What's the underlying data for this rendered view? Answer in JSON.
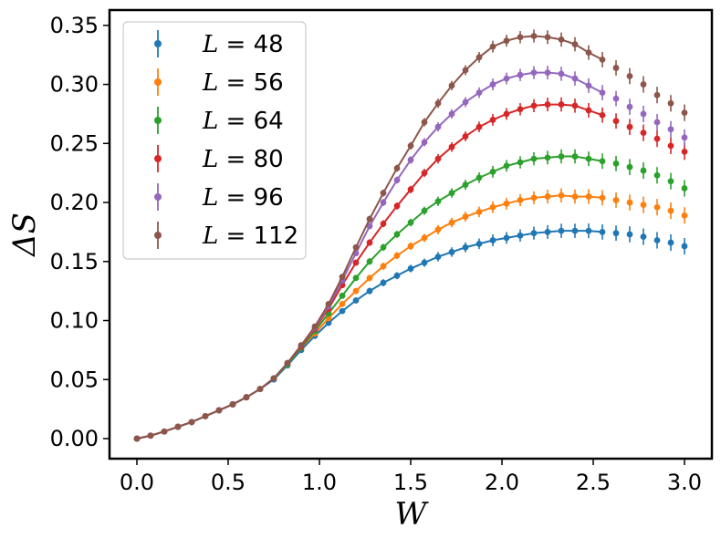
{
  "chart_data": {
    "type": "line",
    "title": "",
    "xlabel": "W",
    "ylabel": "ΔS",
    "xlim": [
      -0.15,
      3.15
    ],
    "ylim": [
      -0.017,
      0.363
    ],
    "xticks": [
      "0.0",
      "0.5",
      "1.0",
      "1.5",
      "2.0",
      "2.5",
      "3.0"
    ],
    "xtick_values": [
      0.0,
      0.5,
      1.0,
      1.5,
      2.0,
      2.5,
      3.0
    ],
    "yticks": [
      "0.00",
      "0.05",
      "0.10",
      "0.15",
      "0.20",
      "0.25",
      "0.30",
      "0.35"
    ],
    "ytick_values": [
      0.0,
      0.05,
      0.1,
      0.15,
      0.2,
      0.25,
      0.3,
      0.35
    ],
    "grid": false,
    "legend_position": "top-left",
    "line_fit_max_w": 2.55,
    "x": [
      0.0,
      0.075,
      0.15,
      0.225,
      0.3,
      0.375,
      0.45,
      0.525,
      0.6,
      0.675,
      0.75,
      0.825,
      0.9,
      0.975,
      1.05,
      1.125,
      1.2,
      1.275,
      1.35,
      1.425,
      1.5,
      1.575,
      1.65,
      1.725,
      1.8,
      1.875,
      1.95,
      2.025,
      2.1,
      2.175,
      2.25,
      2.325,
      2.4,
      2.475,
      2.55,
      2.625,
      2.7,
      2.775,
      2.85,
      2.925,
      3.0
    ],
    "series": [
      {
        "name": "L = 48",
        "L": "48",
        "color": "#1f77b4",
        "values": [
          0.0,
          0.0025,
          0.006,
          0.01,
          0.014,
          0.019,
          0.024,
          0.029,
          0.035,
          0.042,
          0.05,
          0.062,
          0.075,
          0.087,
          0.098,
          0.108,
          0.117,
          0.125,
          0.132,
          0.138,
          0.144,
          0.149,
          0.154,
          0.158,
          0.162,
          0.165,
          0.168,
          0.17,
          0.172,
          0.174,
          0.175,
          0.176,
          0.176,
          0.176,
          0.175,
          0.174,
          0.173,
          0.171,
          0.168,
          0.166,
          0.163
        ],
        "errors": [
          0.0,
          0.0002,
          0.0003,
          0.0004,
          0.0005,
          0.0006,
          0.0007,
          0.0008,
          0.001,
          0.001,
          0.0012,
          0.0014,
          0.0016,
          0.002,
          0.002,
          0.0022,
          0.0025,
          0.0028,
          0.003,
          0.003,
          0.0032,
          0.0035,
          0.004,
          0.004,
          0.0042,
          0.0045,
          0.005,
          0.005,
          0.0052,
          0.0055,
          0.0058,
          0.006,
          0.006,
          0.0062,
          0.0065,
          0.0065,
          0.0068,
          0.007,
          0.007,
          0.007,
          0.007
        ]
      },
      {
        "name": "L = 56",
        "L": "56",
        "color": "#ff7f0e",
        "values": [
          0.0,
          0.0025,
          0.006,
          0.01,
          0.014,
          0.019,
          0.024,
          0.029,
          0.035,
          0.042,
          0.051,
          0.063,
          0.077,
          0.089,
          0.102,
          0.114,
          0.125,
          0.136,
          0.146,
          0.155,
          0.163,
          0.17,
          0.177,
          0.183,
          0.188,
          0.192,
          0.196,
          0.199,
          0.202,
          0.204,
          0.205,
          0.206,
          0.205,
          0.205,
          0.204,
          0.202,
          0.2,
          0.198,
          0.196,
          0.193,
          0.189
        ],
        "errors": [
          0.0,
          0.0002,
          0.0003,
          0.0004,
          0.0005,
          0.0006,
          0.0007,
          0.0008,
          0.001,
          0.001,
          0.0012,
          0.0014,
          0.0016,
          0.002,
          0.002,
          0.0022,
          0.0025,
          0.0028,
          0.003,
          0.003,
          0.0032,
          0.0035,
          0.004,
          0.004,
          0.0042,
          0.0045,
          0.005,
          0.005,
          0.0052,
          0.0055,
          0.0058,
          0.006,
          0.006,
          0.0062,
          0.0065,
          0.0065,
          0.0068,
          0.007,
          0.007,
          0.007,
          0.007
        ]
      },
      {
        "name": "L = 64",
        "L": "64",
        "color": "#2ca02c",
        "values": [
          0.0,
          0.0025,
          0.006,
          0.01,
          0.014,
          0.019,
          0.024,
          0.029,
          0.035,
          0.042,
          0.051,
          0.063,
          0.077,
          0.091,
          0.106,
          0.121,
          0.136,
          0.15,
          0.162,
          0.173,
          0.183,
          0.193,
          0.201,
          0.208,
          0.215,
          0.221,
          0.226,
          0.231,
          0.234,
          0.237,
          0.238,
          0.239,
          0.239,
          0.237,
          0.235,
          0.233,
          0.23,
          0.227,
          0.223,
          0.218,
          0.212
        ],
        "errors": [
          0.0,
          0.0002,
          0.0003,
          0.0004,
          0.0005,
          0.0006,
          0.0007,
          0.0008,
          0.001,
          0.001,
          0.0012,
          0.0014,
          0.0016,
          0.002,
          0.002,
          0.0022,
          0.0025,
          0.0028,
          0.003,
          0.003,
          0.0032,
          0.0035,
          0.004,
          0.004,
          0.0042,
          0.0045,
          0.005,
          0.005,
          0.0052,
          0.0055,
          0.0058,
          0.006,
          0.006,
          0.0062,
          0.0065,
          0.0065,
          0.0068,
          0.007,
          0.007,
          0.007,
          0.007
        ]
      },
      {
        "name": "L = 80",
        "L": "80",
        "color": "#d62728",
        "values": [
          0.0,
          0.0025,
          0.006,
          0.01,
          0.014,
          0.019,
          0.024,
          0.029,
          0.035,
          0.042,
          0.051,
          0.064,
          0.078,
          0.093,
          0.11,
          0.13,
          0.149,
          0.166,
          0.182,
          0.197,
          0.211,
          0.225,
          0.237,
          0.247,
          0.256,
          0.264,
          0.27,
          0.275,
          0.279,
          0.282,
          0.283,
          0.283,
          0.282,
          0.278,
          0.274,
          0.269,
          0.264,
          0.259,
          0.254,
          0.248,
          0.243
        ],
        "errors": [
          0.0,
          0.0002,
          0.0003,
          0.0004,
          0.0005,
          0.0006,
          0.0007,
          0.0008,
          0.001,
          0.001,
          0.0012,
          0.0014,
          0.0016,
          0.002,
          0.002,
          0.0022,
          0.0025,
          0.0028,
          0.003,
          0.003,
          0.0032,
          0.0035,
          0.004,
          0.004,
          0.0042,
          0.0045,
          0.005,
          0.005,
          0.0052,
          0.0055,
          0.0058,
          0.006,
          0.006,
          0.0062,
          0.0065,
          0.0065,
          0.0068,
          0.007,
          0.007,
          0.007,
          0.007
        ]
      },
      {
        "name": "L = 96",
        "L": "96",
        "color": "#9467bd",
        "values": [
          0.0,
          0.0025,
          0.006,
          0.01,
          0.014,
          0.019,
          0.024,
          0.029,
          0.035,
          0.042,
          0.051,
          0.064,
          0.079,
          0.094,
          0.112,
          0.134,
          0.157,
          0.18,
          0.2,
          0.219,
          0.236,
          0.251,
          0.264,
          0.275,
          0.285,
          0.293,
          0.3,
          0.305,
          0.308,
          0.31,
          0.31,
          0.309,
          0.305,
          0.299,
          0.293,
          0.288,
          0.281,
          0.275,
          0.268,
          0.262,
          0.255
        ],
        "errors": [
          0.0,
          0.0002,
          0.0003,
          0.0004,
          0.0005,
          0.0006,
          0.0007,
          0.0008,
          0.001,
          0.001,
          0.0012,
          0.0014,
          0.0016,
          0.002,
          0.002,
          0.0022,
          0.0025,
          0.0028,
          0.003,
          0.003,
          0.0032,
          0.0035,
          0.004,
          0.004,
          0.0042,
          0.0045,
          0.005,
          0.005,
          0.0052,
          0.0055,
          0.0058,
          0.006,
          0.006,
          0.0062,
          0.0065,
          0.0065,
          0.0068,
          0.007,
          0.007,
          0.007,
          0.007
        ]
      },
      {
        "name": "L = 112",
        "L": "112",
        "color": "#8c564b",
        "values": [
          0.0,
          0.0025,
          0.006,
          0.01,
          0.014,
          0.019,
          0.024,
          0.029,
          0.035,
          0.042,
          0.051,
          0.064,
          0.079,
          0.095,
          0.114,
          0.137,
          0.162,
          0.186,
          0.208,
          0.229,
          0.248,
          0.268,
          0.284,
          0.299,
          0.312,
          0.323,
          0.332,
          0.337,
          0.34,
          0.341,
          0.34,
          0.338,
          0.334,
          0.327,
          0.321,
          0.314,
          0.307,
          0.3,
          0.291,
          0.284,
          0.276
        ],
        "errors": [
          0.0,
          0.0002,
          0.0003,
          0.0004,
          0.0005,
          0.0006,
          0.0007,
          0.0008,
          0.001,
          0.001,
          0.0012,
          0.0014,
          0.0016,
          0.002,
          0.002,
          0.0022,
          0.0025,
          0.0028,
          0.003,
          0.003,
          0.0032,
          0.0035,
          0.004,
          0.004,
          0.0042,
          0.0045,
          0.005,
          0.005,
          0.0052,
          0.0055,
          0.0058,
          0.006,
          0.006,
          0.0062,
          0.0065,
          0.0065,
          0.0068,
          0.007,
          0.007,
          0.007,
          0.007
        ]
      }
    ]
  }
}
